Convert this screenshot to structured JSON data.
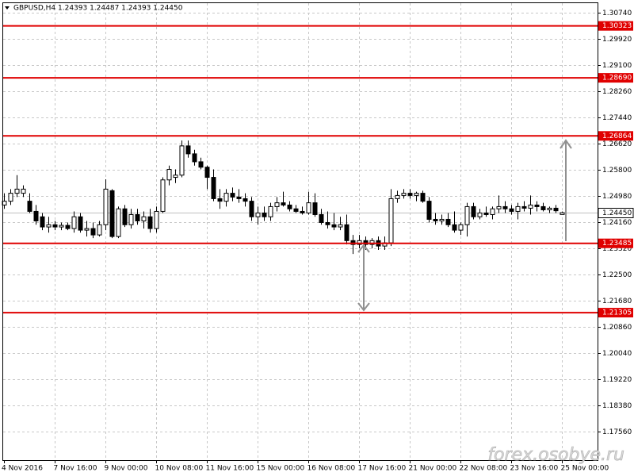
{
  "chart_data": {
    "type": "candlestick",
    "title": "GBPUSD,H4  1.24393 1.24487 1.24393 1.24450",
    "watermark": "forex.osobye.ru",
    "up_color": "#ffffff",
    "down_color": "#000000",
    "line_color": "#000000",
    "grid": true,
    "level_color": "#e00000",
    "price_line_color": "#c0c0c0",
    "ylim": [
      1.16667,
      1.31038
    ],
    "yticks": [
      {
        "value": 1.3074,
        "label": "1.30740"
      },
      {
        "value": 1.2992,
        "label": "1.29920"
      },
      {
        "value": 1.291,
        "label": "1.29100"
      },
      {
        "value": 1.2826,
        "label": "1.28260"
      },
      {
        "value": 1.2744,
        "label": "1.27440"
      },
      {
        "value": 1.2662,
        "label": "1.26620"
      },
      {
        "value": 1.258,
        "label": "1.25800"
      },
      {
        "value": 1.2498,
        "label": "1.24980"
      },
      {
        "value": 1.2416,
        "label": "1.24160"
      },
      {
        "value": 1.2332,
        "label": "1.23320"
      },
      {
        "value": 1.225,
        "label": "1.22500"
      },
      {
        "value": 1.2168,
        "label": "1.21680"
      },
      {
        "value": 1.2086,
        "label": "1.20860"
      },
      {
        "value": 1.2004,
        "label": "1.20040"
      },
      {
        "value": 1.1922,
        "label": "1.19220"
      },
      {
        "value": 1.1838,
        "label": "1.18380"
      },
      {
        "value": 1.1756,
        "label": "1.17560"
      }
    ],
    "levels": [
      {
        "value": 1.30323,
        "label": "1.30323"
      },
      {
        "value": 1.2869,
        "label": "1.28690"
      },
      {
        "value": 1.26864,
        "label": "1.26864"
      },
      {
        "value": 1.23485,
        "label": "1.23485"
      },
      {
        "value": 1.21305,
        "label": "1.21305"
      }
    ],
    "current_price": {
      "value": 1.2445,
      "label": "1.24450"
    },
    "categories": [
      "4 Nov 2016",
      null,
      null,
      null,
      null,
      null,
      null,
      null,
      "7 Nov 16:00",
      null,
      null,
      null,
      null,
      null,
      null,
      null,
      "9 Nov 00:00",
      null,
      null,
      null,
      null,
      null,
      null,
      null,
      "10 Nov 08:00",
      null,
      null,
      null,
      null,
      null,
      null,
      null,
      "11 Nov 16:00",
      null,
      null,
      null,
      null,
      null,
      null,
      null,
      "15 Nov 00:00",
      null,
      null,
      null,
      null,
      null,
      null,
      null,
      "16 Nov 08:00",
      null,
      null,
      null,
      null,
      null,
      null,
      null,
      "17 Nov 16:00",
      null,
      null,
      null,
      null,
      null,
      null,
      null,
      "21 Nov 00:00",
      null,
      null,
      null,
      null,
      null,
      null,
      null,
      "22 Nov 08:00",
      null,
      null,
      null,
      null,
      null,
      null,
      null,
      "23 Nov 16:00",
      null,
      null,
      null,
      null,
      null,
      null,
      null,
      "25 Nov 00:00"
    ],
    "ohlc": [
      [
        1.2469,
        1.2506,
        1.2457,
        1.2481
      ],
      [
        1.2481,
        1.2519,
        1.2469,
        1.2506
      ],
      [
        1.2506,
        1.2563,
        1.2494,
        1.2519
      ],
      [
        1.2506,
        1.2531,
        1.2494,
        1.2519
      ],
      [
        1.2481,
        1.2506,
        1.2444,
        1.2449
      ],
      [
        1.2449,
        1.2469,
        1.2407,
        1.2419
      ],
      [
        1.2432,
        1.2444,
        1.239,
        1.24
      ],
      [
        1.24,
        1.2432,
        1.2382,
        1.2407
      ],
      [
        1.2407,
        1.2419,
        1.239,
        1.24
      ],
      [
        1.24,
        1.2414,
        1.239,
        1.2405
      ],
      [
        1.2405,
        1.2414,
        1.239,
        1.2395
      ],
      [
        1.2395,
        1.2449,
        1.2382,
        1.2432
      ],
      [
        1.2432,
        1.2444,
        1.2382,
        1.239
      ],
      [
        1.239,
        1.2419,
        1.237,
        1.2395
      ],
      [
        1.2395,
        1.2414,
        1.2365,
        1.2375
      ],
      [
        1.2375,
        1.2419,
        1.237,
        1.2407
      ],
      [
        1.2407,
        1.255,
        1.239,
        1.2519
      ],
      [
        1.2514,
        1.2519,
        1.2365,
        1.237
      ],
      [
        1.237,
        1.2464,
        1.2365,
        1.2457
      ],
      [
        1.2457,
        1.2469,
        1.24,
        1.2407
      ],
      [
        1.2407,
        1.2457,
        1.2395,
        1.2439
      ],
      [
        1.2439,
        1.2457,
        1.2407,
        1.2419
      ],
      [
        1.2419,
        1.2449,
        1.2395,
        1.2432
      ],
      [
        1.2432,
        1.2457,
        1.2382,
        1.2395
      ],
      [
        1.2395,
        1.2464,
        1.2382,
        1.2449
      ],
      [
        1.2449,
        1.2556,
        1.2444,
        1.2548
      ],
      [
        1.2548,
        1.2593,
        1.2531,
        1.2581
      ],
      [
        1.2556,
        1.2581,
        1.2538,
        1.2563
      ],
      [
        1.2563,
        1.2672,
        1.2556,
        1.2655
      ],
      [
        1.2655,
        1.2672,
        1.2618,
        1.263
      ],
      [
        1.263,
        1.2643,
        1.2593,
        1.2605
      ],
      [
        1.2605,
        1.2618,
        1.2581,
        1.2588
      ],
      [
        1.2588,
        1.2593,
        1.2519,
        1.2556
      ],
      [
        1.2556,
        1.2581,
        1.2481,
        1.2489
      ],
      [
        1.2489,
        1.2519,
        1.2457,
        1.2481
      ],
      [
        1.2481,
        1.2519,
        1.2464,
        1.2506
      ],
      [
        1.2506,
        1.2524,
        1.2481,
        1.2494
      ],
      [
        1.2494,
        1.2519,
        1.2476,
        1.2489
      ],
      [
        1.2489,
        1.2506,
        1.2464,
        1.2481
      ],
      [
        1.2481,
        1.2494,
        1.2419,
        1.2432
      ],
      [
        1.2432,
        1.2464,
        1.2407,
        1.2444
      ],
      [
        1.2444,
        1.2464,
        1.2419,
        1.2432
      ],
      [
        1.2432,
        1.2476,
        1.2419,
        1.2464
      ],
      [
        1.2464,
        1.2494,
        1.2449,
        1.2476
      ],
      [
        1.2476,
        1.2511,
        1.2464,
        1.2469
      ],
      [
        1.2469,
        1.2481,
        1.2449,
        1.2457
      ],
      [
        1.2457,
        1.2469,
        1.2444,
        1.2449
      ],
      [
        1.2449,
        1.2464,
        1.2439,
        1.2444
      ],
      [
        1.2444,
        1.2511,
        1.2439,
        1.2476
      ],
      [
        1.2476,
        1.2506,
        1.2432,
        1.2439
      ],
      [
        1.2439,
        1.2457,
        1.2407,
        1.2414
      ],
      [
        1.2414,
        1.2449,
        1.2395,
        1.2407
      ],
      [
        1.2407,
        1.2444,
        1.239,
        1.24
      ],
      [
        1.24,
        1.2432,
        1.239,
        1.2407
      ],
      [
        1.2407,
        1.2439,
        1.2345,
        1.2357
      ],
      [
        1.2357,
        1.2375,
        1.2315,
        1.2345
      ],
      [
        1.2345,
        1.2375,
        1.2333,
        1.2357
      ],
      [
        1.2357,
        1.237,
        1.2328,
        1.2345
      ],
      [
        1.2345,
        1.2365,
        1.2333,
        1.2357
      ],
      [
        1.2357,
        1.237,
        1.2328,
        1.234
      ],
      [
        1.234,
        1.237,
        1.2328,
        1.235
      ],
      [
        1.235,
        1.2519,
        1.234,
        1.2489
      ],
      [
        1.2489,
        1.2514,
        1.2476,
        1.2499
      ],
      [
        1.2499,
        1.2519,
        1.2489,
        1.2506
      ],
      [
        1.2506,
        1.2519,
        1.2489,
        1.2499
      ],
      [
        1.2499,
        1.2511,
        1.2481,
        1.2506
      ],
      [
        1.2506,
        1.2514,
        1.2476,
        1.2481
      ],
      [
        1.2481,
        1.2494,
        1.2414,
        1.2424
      ],
      [
        1.2424,
        1.2444,
        1.2407,
        1.2419
      ],
      [
        1.2419,
        1.2439,
        1.2407,
        1.2424
      ],
      [
        1.2424,
        1.2444,
        1.24,
        1.2407
      ],
      [
        1.2407,
        1.2449,
        1.2382,
        1.239
      ],
      [
        1.239,
        1.2414,
        1.2375,
        1.2407
      ],
      [
        1.2407,
        1.2476,
        1.237,
        1.2464
      ],
      [
        1.2464,
        1.2476,
        1.2424,
        1.2432
      ],
      [
        1.2432,
        1.2457,
        1.2424,
        1.2444
      ],
      [
        1.2444,
        1.2464,
        1.2432,
        1.2439
      ],
      [
        1.2439,
        1.2464,
        1.2424,
        1.2457
      ],
      [
        1.2457,
        1.2499,
        1.2444,
        1.2464
      ],
      [
        1.2464,
        1.2481,
        1.2444,
        1.2457
      ],
      [
        1.2457,
        1.2469,
        1.2439,
        1.2449
      ],
      [
        1.2449,
        1.2476,
        1.2424,
        1.2464
      ],
      [
        1.2464,
        1.2481,
        1.2449,
        1.2459
      ],
      [
        1.2459,
        1.2499,
        1.2439,
        1.2469
      ],
      [
        1.2469,
        1.2481,
        1.2449,
        1.2464
      ],
      [
        1.2464,
        1.2476,
        1.2449,
        1.2454
      ],
      [
        1.2454,
        1.2464,
        1.2444,
        1.2459
      ],
      [
        1.2459,
        1.2469,
        1.2444,
        1.2451
      ],
      [
        1.24393,
        1.24487,
        1.24393,
        1.2445
      ]
    ]
  }
}
